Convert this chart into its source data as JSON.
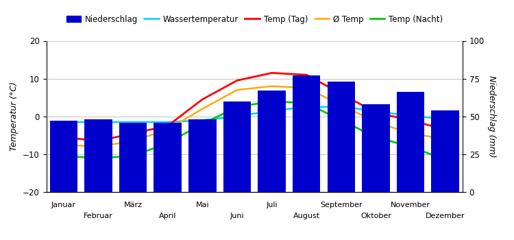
{
  "months": [
    "Januar",
    "Februar",
    "März",
    "April",
    "Mai",
    "Juni",
    "Juli",
    "August",
    "September",
    "Oktober",
    "November",
    "Dezember"
  ],
  "precipitation": [
    47,
    48,
    46,
    46,
    48,
    60,
    67,
    77,
    73,
    58,
    66,
    54
  ],
  "temp_day": [
    -5.5,
    -6.5,
    -4.5,
    -2.5,
    4.5,
    9.5,
    11.5,
    11.0,
    6.0,
    1.0,
    -1.0,
    -3.5
  ],
  "temp_avg": [
    -7.5,
    -8.0,
    -6.5,
    -3.5,
    2.0,
    7.0,
    8.0,
    7.5,
    3.0,
    -1.5,
    -4.5,
    -6.0
  ],
  "temp_night": [
    -10.5,
    -11.0,
    -10.5,
    -7.0,
    -2.0,
    2.5,
    4.0,
    3.5,
    -1.0,
    -5.5,
    -8.0,
    -11.5
  ],
  "water_temp": [
    -1.5,
    -1.5,
    -1.5,
    -1.5,
    -1.0,
    0.0,
    1.5,
    2.5,
    2.5,
    1.5,
    0.0,
    -0.5
  ],
  "temp_ylim": [
    -20,
    20
  ],
  "precip_ylim": [
    0,
    100
  ],
  "bar_color": "#0000cc",
  "line_color_water": "#00ccff",
  "line_color_day": "#ff0000",
  "line_color_avg": "#ffaa00",
  "line_color_night": "#00cc00",
  "ylabel_left": "Temperatur (°C)",
  "ylabel_right": "Niederschlag (mm)",
  "legend_labels": [
    "Niederschlag",
    "Wassertemperatur",
    "Temp (Tag)",
    "Ø Temp",
    "Temp (Nacht)"
  ],
  "background_color": "#ffffff",
  "grid_color": "#c8c8c8"
}
